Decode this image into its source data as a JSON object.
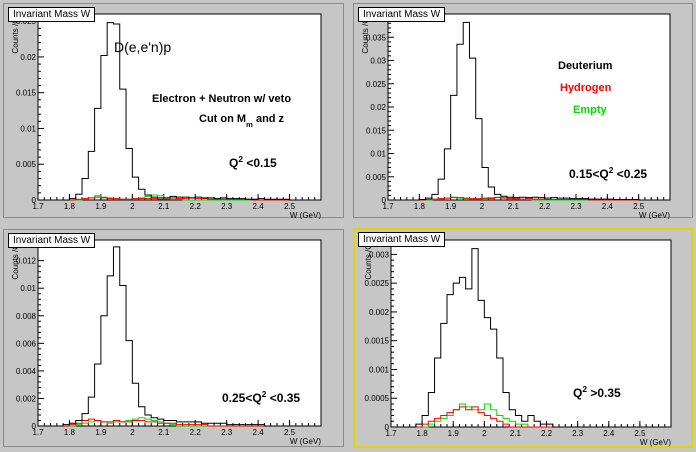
{
  "bins": [
    1.7,
    1.72,
    1.74,
    1.76,
    1.78,
    1.8,
    1.82,
    1.84,
    1.86,
    1.88,
    1.9,
    1.92,
    1.94,
    1.96,
    1.98,
    2.0,
    2.02,
    2.04,
    2.06,
    2.08,
    2.1,
    2.12,
    2.14,
    2.16,
    2.18,
    2.2,
    2.22,
    2.24,
    2.26,
    2.28,
    2.3,
    2.32,
    2.34,
    2.36,
    2.38,
    2.4,
    2.42,
    2.44,
    2.46,
    2.48,
    2.5,
    2.52,
    2.54,
    2.56,
    2.58,
    2.6
  ],
  "chart_data": [
    {
      "type": "histogram",
      "title": "Invariant Mass W",
      "xlabel": "W (GeV)",
      "ylabel": "Counts /C",
      "xlim": [
        1.7,
        2.6
      ],
      "ylim": [
        0,
        0.026
      ],
      "xticks": [
        "1.7",
        "1.8",
        "1.9",
        "2",
        "2.1",
        "2.2",
        "2.3",
        "2.4",
        "2.5"
      ],
      "yticks": [
        {
          "v": 0,
          "t": "0"
        },
        {
          "v": 0.005,
          "t": "0.005"
        },
        {
          "v": 0.01,
          "t": "0.01"
        },
        {
          "v": 0.015,
          "t": "0.015"
        },
        {
          "v": 0.02,
          "t": "0.02"
        },
        {
          "v": 0.025,
          "t": "0.025"
        }
      ],
      "series": [
        {
          "color": "#000000",
          "values": [
            0,
            0,
            0,
            0,
            0,
            0.0002,
            0.0008,
            0.003,
            0.0068,
            0.0128,
            0.0202,
            0.0248,
            0.0246,
            0.0155,
            0.0072,
            0.0032,
            0.0015,
            0.0007,
            0.0004,
            0.0003,
            0.0003,
            0.0005,
            0.0004,
            0.0004,
            0.0003,
            0.0004,
            0.0003,
            0.0003,
            0.0002,
            0.0003,
            0.0002,
            0.0002,
            0.0002,
            0.0001,
            0.0001,
            0.0002,
            0.0001,
            0.0001,
            0.0001,
            0.0001,
            0,
            0,
            0,
            0,
            0
          ]
        },
        {
          "color": "#ff0000",
          "values": [
            0,
            0,
            0,
            0,
            0,
            0,
            0.0001,
            0.0002,
            0.0003,
            0.0004,
            0.0003,
            0.0002,
            0.0002,
            0.0001,
            0.0001,
            0.0002,
            0.0002,
            0.0002,
            0.0002,
            0.0001,
            0.0001,
            0.0003,
            0.0002,
            0.0002,
            0.0003,
            0.0002,
            0.0002,
            0.0001,
            0.0001,
            0.0001,
            0.0001,
            0.0001,
            0.0001,
            0.0001,
            0,
            0,
            0,
            0,
            0,
            0,
            0,
            0,
            0,
            0,
            0
          ]
        },
        {
          "color": "#00dd00",
          "values": [
            0,
            0,
            0,
            0,
            0,
            0,
            0,
            0.0001,
            0.0003,
            0.0006,
            0.0004,
            0.0003,
            0.0002,
            0.0001,
            0.0001,
            0.0002,
            0.0003,
            0.0005,
            0.0007,
            0.0006,
            0.0003,
            0.0001,
            0.0001,
            0,
            0,
            0,
            0,
            0,
            0,
            0,
            0,
            0,
            0,
            0,
            0,
            0,
            0,
            0,
            0,
            0,
            0,
            0,
            0,
            0,
            0
          ]
        }
      ],
      "labels": [
        {
          "parts": [
            {
              "t": "D(e,e'n)p"
            }
          ],
          "size": 14,
          "bold": false,
          "color": "#000000"
        },
        {
          "parts": [
            {
              "t": "Electron + Neutron w/ veto"
            }
          ],
          "size": 11,
          "bold": true,
          "color": "#000000"
        },
        {
          "parts": [
            {
              "t": "Cut on M"
            },
            {
              "t": "m",
              "sub": true
            },
            {
              "t": " and z"
            }
          ],
          "size": 11,
          "bold": true,
          "color": "#000000"
        },
        {
          "parts": [
            {
              "t": "Q"
            },
            {
              "t": "2",
              "sup": true
            },
            {
              "t": " <0.15"
            }
          ],
          "size": 12,
          "bold": true,
          "color": "#000000"
        }
      ]
    },
    {
      "type": "histogram",
      "title": "Invariant Mass W",
      "xlabel": "W (GeV)",
      "ylabel": "Counts /C",
      "xlim": [
        1.7,
        2.6
      ],
      "ylim": [
        0,
        0.04
      ],
      "xticks": [
        "1.7",
        "1.8",
        "1.9",
        "2",
        "2.1",
        "2.2",
        "2.3",
        "2.4",
        "2.5"
      ],
      "yticks": [
        {
          "v": 0,
          "t": "0"
        },
        {
          "v": 0.005,
          "t": "0.005"
        },
        {
          "v": 0.01,
          "t": "0.01"
        },
        {
          "v": 0.015,
          "t": "0.015"
        },
        {
          "v": 0.02,
          "t": "0.02"
        },
        {
          "v": 0.025,
          "t": "0.025"
        },
        {
          "v": 0.03,
          "t": "0.03"
        },
        {
          "v": 0.035,
          "t": "0.035"
        },
        {
          "v": 0.04,
          "t": "0.04"
        }
      ],
      "series": [
        {
          "color": "#000000",
          "values": [
            0,
            0,
            0,
            0,
            0,
            0.0001,
            0.0004,
            0.0012,
            0.0045,
            0.011,
            0.0225,
            0.0335,
            0.0382,
            0.0305,
            0.0175,
            0.007,
            0.0028,
            0.0012,
            0.0008,
            0.0006,
            0.0005,
            0.0006,
            0.0005,
            0.0006,
            0.0005,
            0.0004,
            0.0005,
            0.0004,
            0.0004,
            0.0003,
            0.0003,
            0.0003,
            0.0002,
            0.0002,
            0.0002,
            0.0002,
            0.0001,
            0.0001,
            0.0001,
            0.0001,
            0,
            0,
            0,
            0,
            0
          ]
        },
        {
          "color": "#ff0000",
          "values": [
            0,
            0,
            0,
            0,
            0,
            0,
            0.0001,
            0.0002,
            0.0003,
            0.0004,
            0.0006,
            0.0005,
            0.0004,
            0.0003,
            0.0003,
            0.0004,
            0.0003,
            0.0005,
            0.0004,
            0.0003,
            0.0003,
            0.0002,
            0.0003,
            0.0002,
            0.0002,
            0.0001,
            0.0001,
            0.0001,
            0.0001,
            0.0001,
            0.0001,
            0.0001,
            0,
            0,
            0,
            0,
            0,
            0,
            0,
            0,
            0,
            0,
            0,
            0,
            0
          ]
        },
        {
          "color": "#00dd00",
          "values": [
            0,
            0,
            0,
            0,
            0,
            0,
            0,
            0.0001,
            0.0002,
            0.0004,
            0.0005,
            0.0004,
            0.0003,
            0.0002,
            0.0002,
            0.0003,
            0.0005,
            0.0006,
            0.0005,
            0.0003,
            0.0002,
            0.0001,
            0.0001,
            0,
            0,
            0,
            0,
            0,
            0,
            0,
            0,
            0,
            0,
            0,
            0,
            0,
            0,
            0,
            0,
            0,
            0,
            0,
            0,
            0,
            0
          ]
        }
      ],
      "labels": [
        {
          "parts": [
            {
              "t": "Deuterium"
            }
          ],
          "size": 11,
          "bold": true,
          "color": "#000000"
        },
        {
          "parts": [
            {
              "t": "Hydrogen"
            }
          ],
          "size": 11,
          "bold": true,
          "color": "#ff0000"
        },
        {
          "parts": [
            {
              "t": "Empty"
            }
          ],
          "size": 11,
          "bold": true,
          "color": "#00dd00"
        },
        {
          "parts": [
            {
              "t": "0.15<Q"
            },
            {
              "t": "2",
              "sup": true
            },
            {
              "t": " <0.25"
            }
          ],
          "size": 12,
          "bold": true,
          "color": "#000000"
        }
      ]
    },
    {
      "type": "histogram",
      "title": "Invariant Mass W",
      "xlabel": "W (GeV)",
      "ylabel": "Counts /C",
      "xlim": [
        1.7,
        2.6
      ],
      "ylim": [
        0,
        0.0135
      ],
      "xticks": [
        "1.7",
        "1.8",
        "1.9",
        "2",
        "2.1",
        "2.2",
        "2.3",
        "2.4",
        "2.5"
      ],
      "yticks": [
        {
          "v": 0,
          "t": "0"
        },
        {
          "v": 0.002,
          "t": "0.002"
        },
        {
          "v": 0.004,
          "t": "0.004"
        },
        {
          "v": 0.006,
          "t": "0.006"
        },
        {
          "v": 0.008,
          "t": "0.008"
        },
        {
          "v": 0.01,
          "t": "0.01"
        },
        {
          "v": 0.012,
          "t": "0.012"
        }
      ],
      "series": [
        {
          "color": "#000000",
          "values": [
            0,
            0,
            0,
            0,
            0.0001,
            0.0002,
            0.0004,
            0.0009,
            0.0021,
            0.0045,
            0.008,
            0.0109,
            0.013,
            0.0102,
            0.0062,
            0.0031,
            0.0014,
            0.0008,
            0.0006,
            0.0005,
            0.0004,
            0.0004,
            0.0003,
            0.0003,
            0.0003,
            0.0003,
            0.0002,
            0.0002,
            0.0002,
            0.0002,
            0.0001,
            0.0001,
            0.0001,
            0.0001,
            0.0001,
            0.0001,
            0,
            0,
            0,
            0,
            0,
            0,
            0,
            0,
            0
          ]
        },
        {
          "color": "#ff0000",
          "values": [
            0,
            0,
            0,
            0,
            0,
            0.0001,
            0.0002,
            0.0004,
            0.0005,
            0.0004,
            0.0003,
            0.0003,
            0.0004,
            0.0003,
            0.0003,
            0.0004,
            0.0004,
            0.0003,
            0.0003,
            0.0002,
            0.0002,
            0.0002,
            0.0001,
            0.0001,
            0.0001,
            0.0001,
            0.0001,
            0,
            0,
            0,
            0,
            0,
            0,
            0,
            0,
            0,
            0,
            0,
            0,
            0,
            0,
            0,
            0,
            0,
            0
          ]
        },
        {
          "color": "#00dd00",
          "values": [
            0,
            0,
            0,
            0,
            0,
            0,
            0.0001,
            0.0002,
            0.0003,
            0.0004,
            0.0003,
            0.0002,
            0.0003,
            0.0003,
            0.0004,
            0.0005,
            0.0006,
            0.0005,
            0.0004,
            0.0003,
            0.0002,
            0.0001,
            0,
            0,
            0,
            0,
            0,
            0,
            0,
            0,
            0,
            0,
            0,
            0,
            0,
            0,
            0,
            0,
            0,
            0,
            0,
            0,
            0,
            0,
            0
          ]
        }
      ],
      "labels": [
        {
          "parts": [
            {
              "t": "0.25<Q"
            },
            {
              "t": "2",
              "sup": true
            },
            {
              "t": " <0.35"
            }
          ],
          "size": 12,
          "bold": true,
          "color": "#000000"
        }
      ]
    },
    {
      "type": "histogram",
      "title": "Invariant Mass W",
      "xlabel": "W (GeV)",
      "ylabel": "Counts /C",
      "xlim": [
        1.7,
        2.6
      ],
      "ylim": [
        0,
        0.00325
      ],
      "xticks": [
        "1.7",
        "1.8",
        "1.9",
        "2",
        "2.1",
        "2.2",
        "2.3",
        "2.4",
        "2.5"
      ],
      "yticks": [
        {
          "v": 0,
          "t": "0"
        },
        {
          "v": 0.0005,
          "t": "0.0005"
        },
        {
          "v": 0.001,
          "t": "0.001"
        },
        {
          "v": 0.0015,
          "t": "0.0015"
        },
        {
          "v": 0.002,
          "t": "0.002"
        },
        {
          "v": 0.0025,
          "t": "0.0025"
        },
        {
          "v": 0.003,
          "t": "0.003"
        }
      ],
      "series": [
        {
          "color": "#000000",
          "values": [
            0,
            0,
            0,
            0,
            5e-05,
            0.0002,
            0.0006,
            0.0012,
            0.0018,
            0.0023,
            0.0025,
            0.0026,
            0.0024,
            0.0031,
            0.0022,
            0.0019,
            0.0017,
            0.0012,
            0.0006,
            0.0003,
            0.0002,
            0.0001,
            0.0002,
            0.0001,
            5e-05,
            5e-05,
            0,
            0,
            0,
            0,
            0,
            0,
            0,
            0,
            0,
            0,
            0,
            0,
            0,
            0,
            0,
            0,
            0,
            0,
            0
          ]
        },
        {
          "color": "#ff0000",
          "values": [
            0,
            0,
            0,
            0,
            0,
            5e-05,
            0.0001,
            0.00015,
            0.0002,
            0.00025,
            0.0003,
            0.00035,
            0.0003,
            0.00035,
            0.00025,
            0.0002,
            0.00015,
            0.0001,
            5e-05,
            0,
            0,
            0,
            0,
            0,
            0,
            0,
            0,
            0,
            0,
            0,
            0,
            0,
            0,
            0,
            0,
            0,
            0,
            0,
            0,
            0,
            0,
            0,
            0,
            0,
            0
          ]
        },
        {
          "color": "#00dd00",
          "values": [
            0,
            0,
            0,
            0,
            0,
            0,
            5e-05,
            0.0001,
            0.00015,
            0.0002,
            0.0003,
            0.0004,
            0.00035,
            0.0003,
            0.0003,
            0.0004,
            0.0003,
            0.0002,
            0.00015,
            0.0001,
            5e-05,
            5e-05,
            0,
            0,
            0,
            0,
            0,
            0,
            0,
            0,
            0,
            0,
            0,
            0,
            0,
            0,
            0,
            0,
            0,
            0,
            0,
            0,
            0,
            0,
            0
          ]
        }
      ],
      "labels": [
        {
          "parts": [
            {
              "t": "Q"
            },
            {
              "t": "2",
              "sup": true
            },
            {
              "t": " >0.35"
            }
          ],
          "size": 12,
          "bold": true,
          "color": "#000000"
        }
      ]
    }
  ]
}
